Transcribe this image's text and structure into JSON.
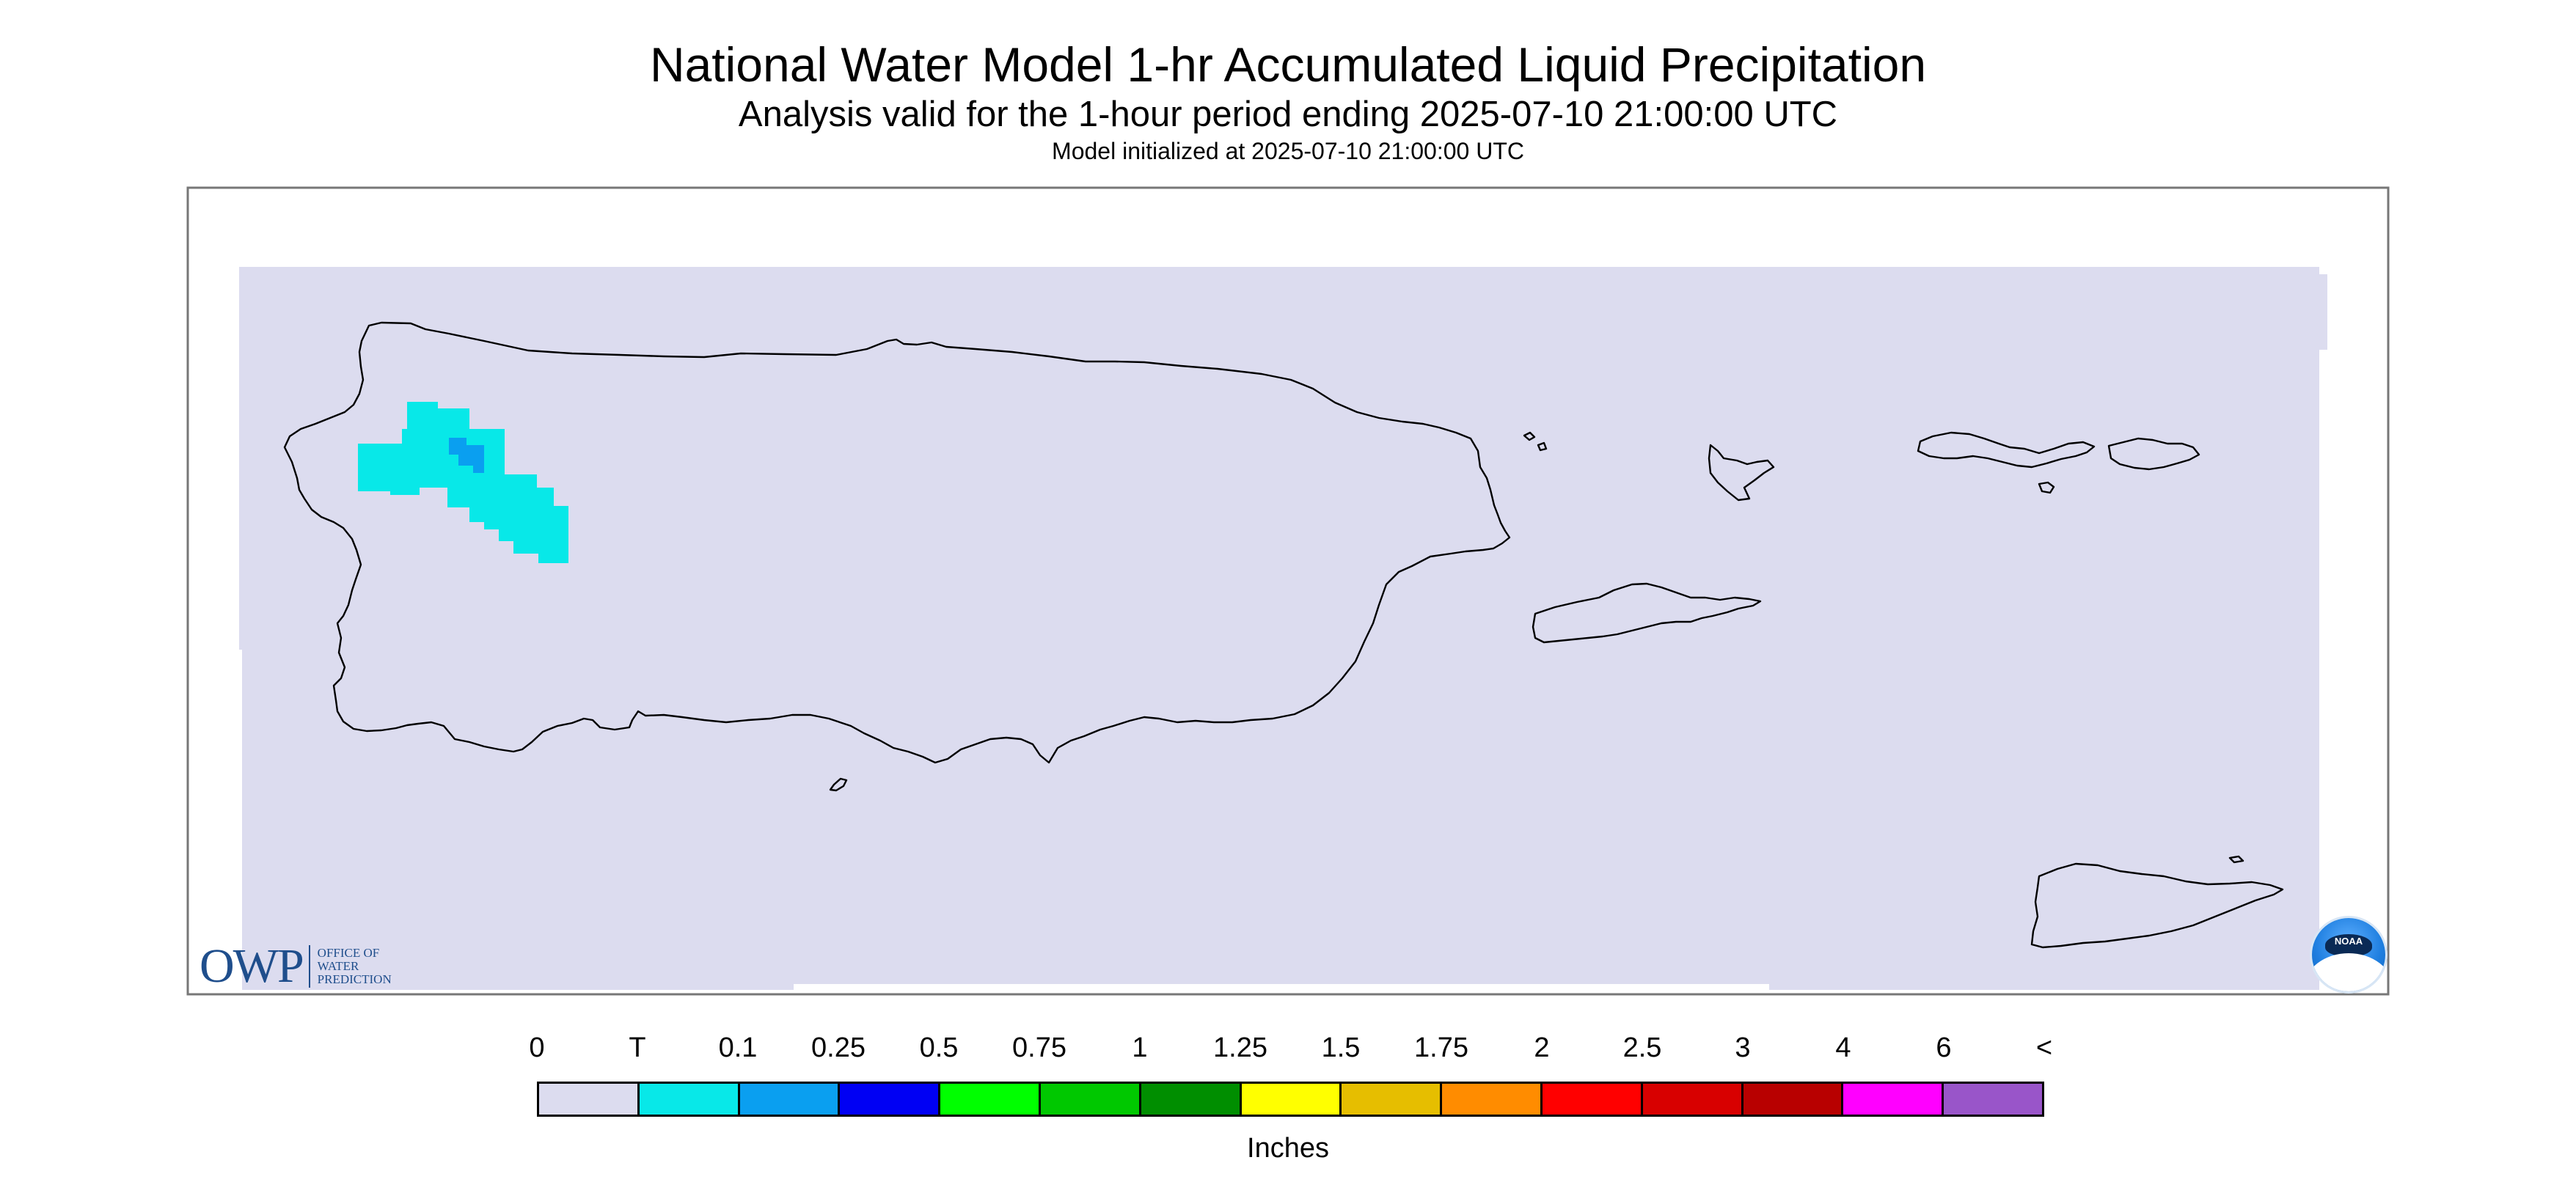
{
  "title": "National Water Model 1-hr Accumulated Liquid Precipitation",
  "subtitle": "Analysis valid for the 1-hour period ending 2025-07-10 21:00:00 UTC",
  "init_line": "Model initialized at 2025-07-10 21:00:00 UTC",
  "legend": {
    "labels": [
      "0",
      "T",
      "0.1",
      "0.25",
      "0.5",
      "0.75",
      "1",
      "1.25",
      "1.5",
      "1.75",
      "2",
      "2.5",
      "3",
      "4",
      "6",
      "<"
    ],
    "colors": [
      "#dcdcef",
      "#08e8e8",
      "#0a9ff0",
      "#0000f4",
      "#00ff00",
      "#00c800",
      "#008e00",
      "#ffff00",
      "#e6be00",
      "#ff8c00",
      "#ff0000",
      "#d80000",
      "#b80000",
      "#ff00ff",
      "#9955c9"
    ],
    "units": "Inches"
  },
  "map": {
    "background_color": "#dcdcef",
    "coastline_color": "#000000",
    "precip_areas": [
      {
        "category": "T",
        "color": "#08e8e8"
      },
      {
        "category": "0.1",
        "color": "#0a9ff0"
      }
    ]
  },
  "logos": {
    "owp_mark": "OWP",
    "owp_text": [
      "OFFICE OF",
      "WATER",
      "PREDICTION"
    ],
    "noaa_text": "NOAA"
  }
}
